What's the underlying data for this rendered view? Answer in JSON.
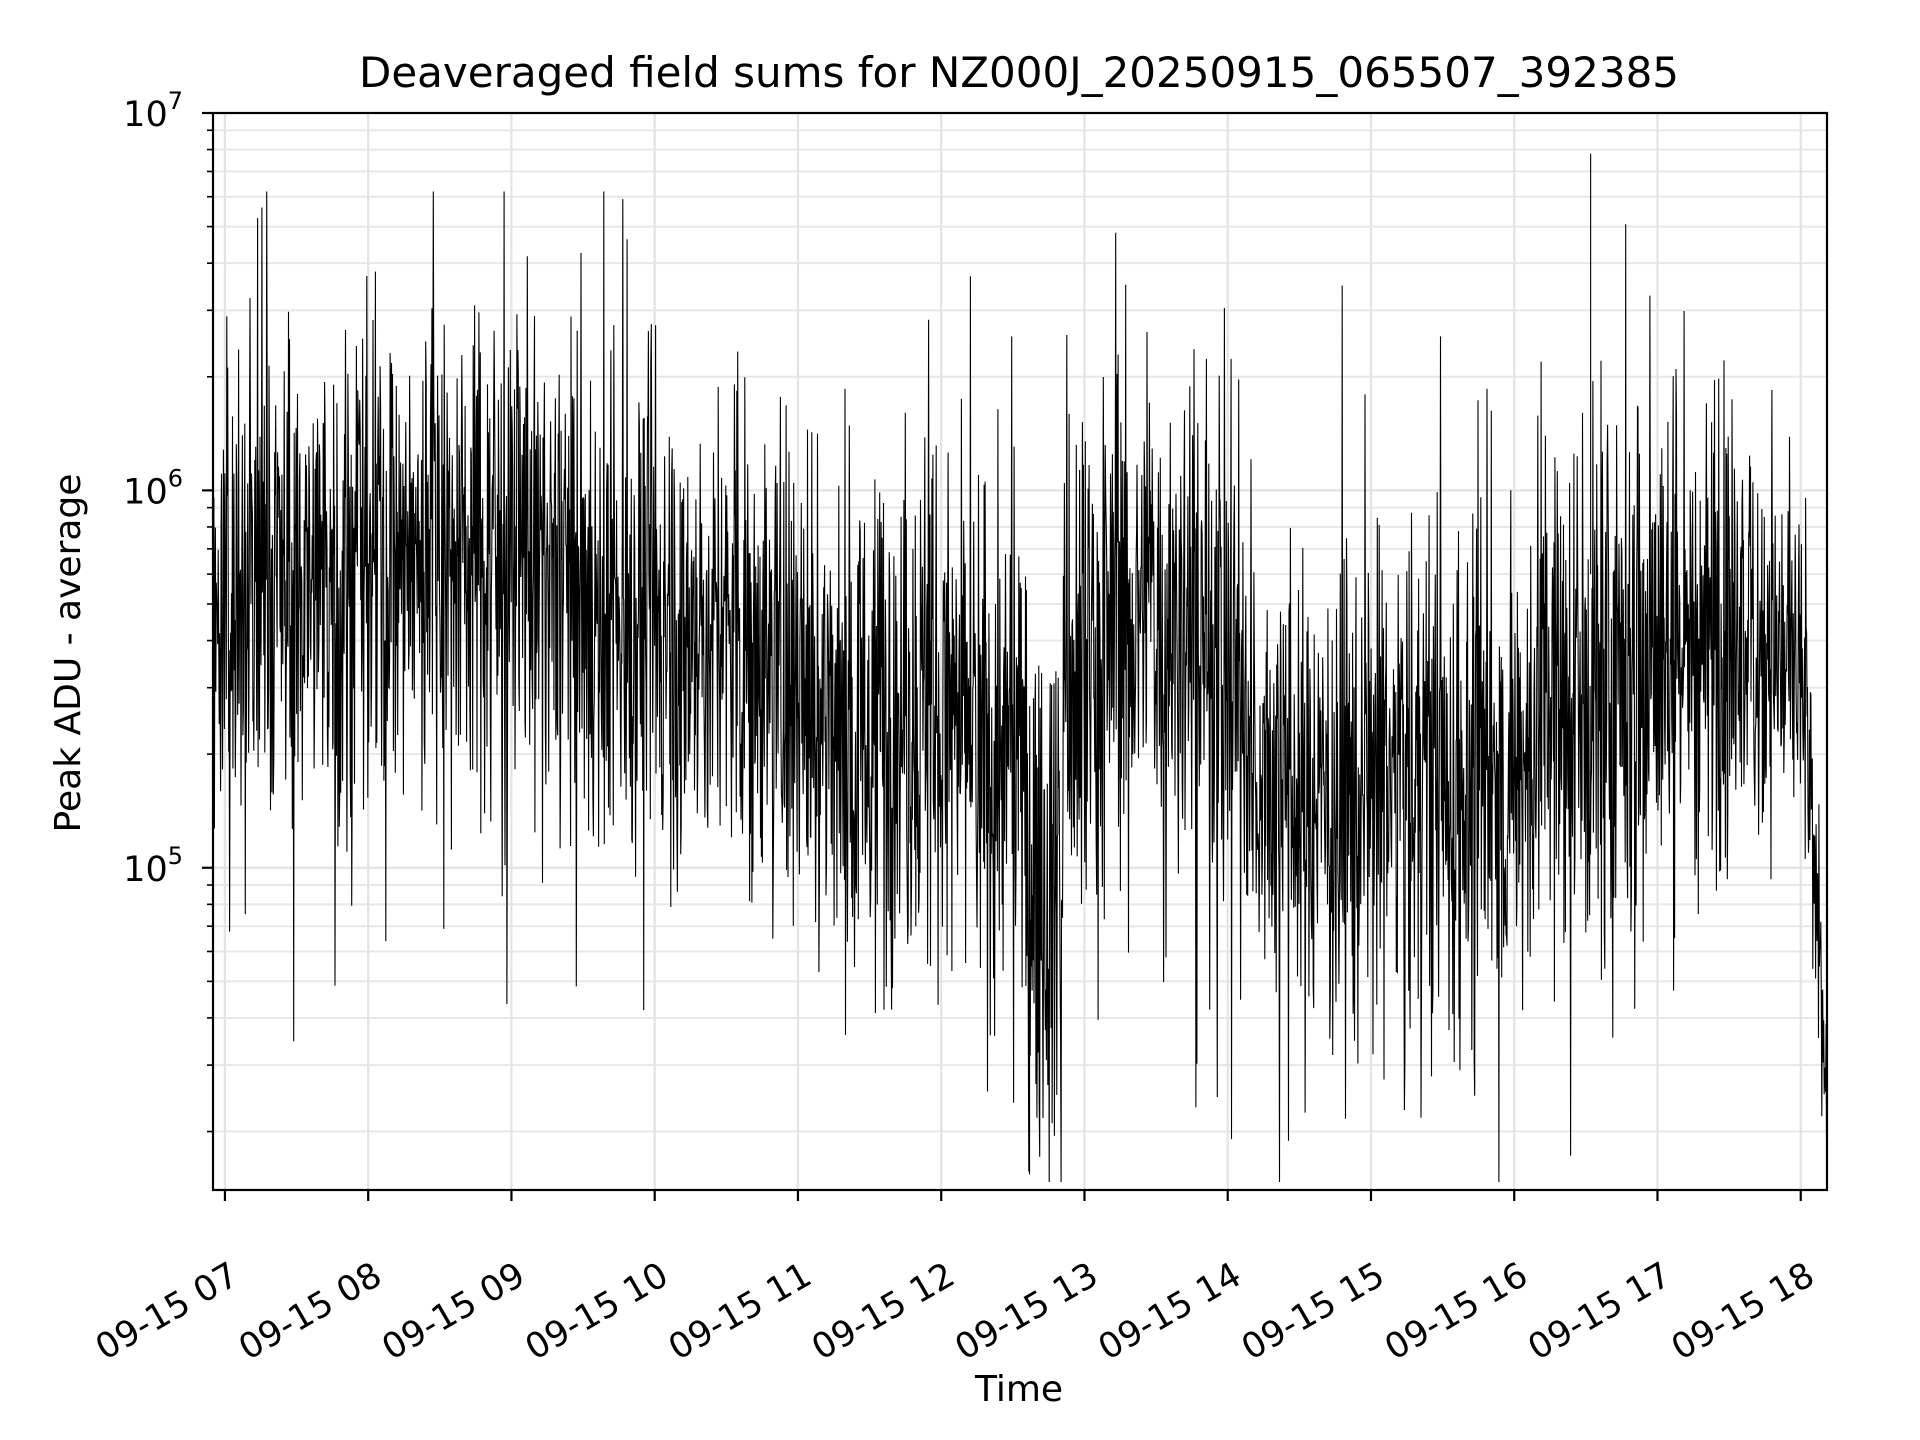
{
  "chart_data": {
    "type": "line",
    "title": "Deaveraged field sums for NZ000J_20250915_065507_392385",
    "xlabel": "Time",
    "ylabel": "Peak ADU - average",
    "yscale": "log",
    "ylim": [
      14000,
      10000000
    ],
    "xlim": [
      "09-15 06:55",
      "09-15 18:11"
    ],
    "grid": true,
    "legend": "none",
    "line_color": "#000000",
    "x_tick_labels": [
      "09-15 07",
      "09-15 08",
      "09-15 09",
      "09-15 10",
      "09-15 11",
      "09-15 12",
      "09-15 13",
      "09-15 14",
      "09-15 15",
      "09-15 16",
      "09-15 17",
      "09-15 18"
    ],
    "y_tick_labels": [
      {
        "base": "10",
        "exp": "5",
        "value": 100000
      },
      {
        "base": "10",
        "exp": "6",
        "value": 1000000
      },
      {
        "base": "10",
        "exp": "7",
        "value": 10000000
      }
    ],
    "series": [
      {
        "x": [
          "09-15 06:55",
          "09-15 07:15",
          "09-15 07:30",
          "09-15 07:45",
          "09-15 08:00",
          "09-15 08:15",
          "09-15 08:30",
          "09-15 08:45",
          "09-15 09:00",
          "09-15 09:15",
          "09-15 09:30",
          "09-15 09:45",
          "09-15 10:00",
          "09-15 10:15",
          "09-15 10:30",
          "09-15 10:45",
          "09-15 11:00",
          "09-15 11:15",
          "09-15 11:30",
          "09-15 11:45",
          "09-15 12:00",
          "09-15 12:15",
          "09-15 12:30",
          "09-15 12:40",
          "09-15 12:50",
          "09-15 13:00",
          "09-15 13:15",
          "09-15 13:30",
          "09-15 13:45",
          "09-15 14:00",
          "09-15 14:15",
          "09-15 14:30",
          "09-15 14:45",
          "09-15 15:00",
          "09-15 15:15",
          "09-15 15:30",
          "09-15 15:45",
          "09-15 16:00",
          "09-15 16:15",
          "09-15 16:30",
          "09-15 16:45",
          "09-15 17:00",
          "09-15 17:15",
          "09-15 17:30",
          "09-15 17:45",
          "09-15 18:00",
          "09-15 18:05",
          "09-15 18:11"
        ],
        "y_median": [
          450000,
          600000,
          550000,
          580000,
          600000,
          650000,
          700000,
          720000,
          650000,
          600000,
          550000,
          500000,
          450000,
          420000,
          400000,
          380000,
          300000,
          250000,
          230000,
          300000,
          250000,
          220000,
          200000,
          90000,
          100000,
          300000,
          450000,
          500000,
          400000,
          350000,
          200000,
          150000,
          150000,
          160000,
          170000,
          160000,
          170000,
          150000,
          300000,
          250000,
          300000,
          350000,
          400000,
          420000,
          420000,
          300000,
          100000,
          20000
        ],
        "y_spread_decades": [
          0.45,
          0.55,
          0.55,
          0.55,
          0.55,
          0.55,
          0.55,
          0.55,
          0.55,
          0.55,
          0.5,
          0.5,
          0.5,
          0.5,
          0.5,
          0.5,
          0.55,
          0.55,
          0.55,
          0.6,
          0.6,
          0.6,
          0.6,
          0.55,
          0.55,
          0.6,
          0.55,
          0.55,
          0.6,
          0.6,
          0.55,
          0.55,
          0.55,
          0.55,
          0.55,
          0.55,
          0.55,
          0.55,
          0.6,
          0.6,
          0.6,
          0.55,
          0.55,
          0.5,
          0.45,
          0.35,
          0.25,
          0.1
        ],
        "max": 7800000,
        "min": 14000
      }
    ]
  }
}
